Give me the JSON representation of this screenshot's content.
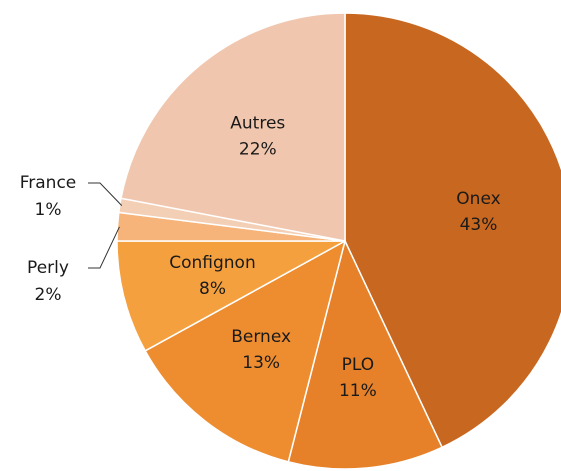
{
  "chart_data": {
    "type": "pie",
    "categories": [
      "Onex",
      "PLO",
      "Bernex",
      "Confignon",
      "Perly",
      "France",
      "Autres"
    ],
    "values": [
      43,
      11,
      13,
      8,
      2,
      1,
      22
    ],
    "value_labels": [
      "43%",
      "11%",
      "13%",
      "8%",
      "2%",
      "1%",
      "22%"
    ],
    "colors": [
      "#c8671f",
      "#e6812a",
      "#ee8d30",
      "#f4a03e",
      "#f6b47a",
      "#f3cfb6",
      "#f0c6ae"
    ]
  }
}
